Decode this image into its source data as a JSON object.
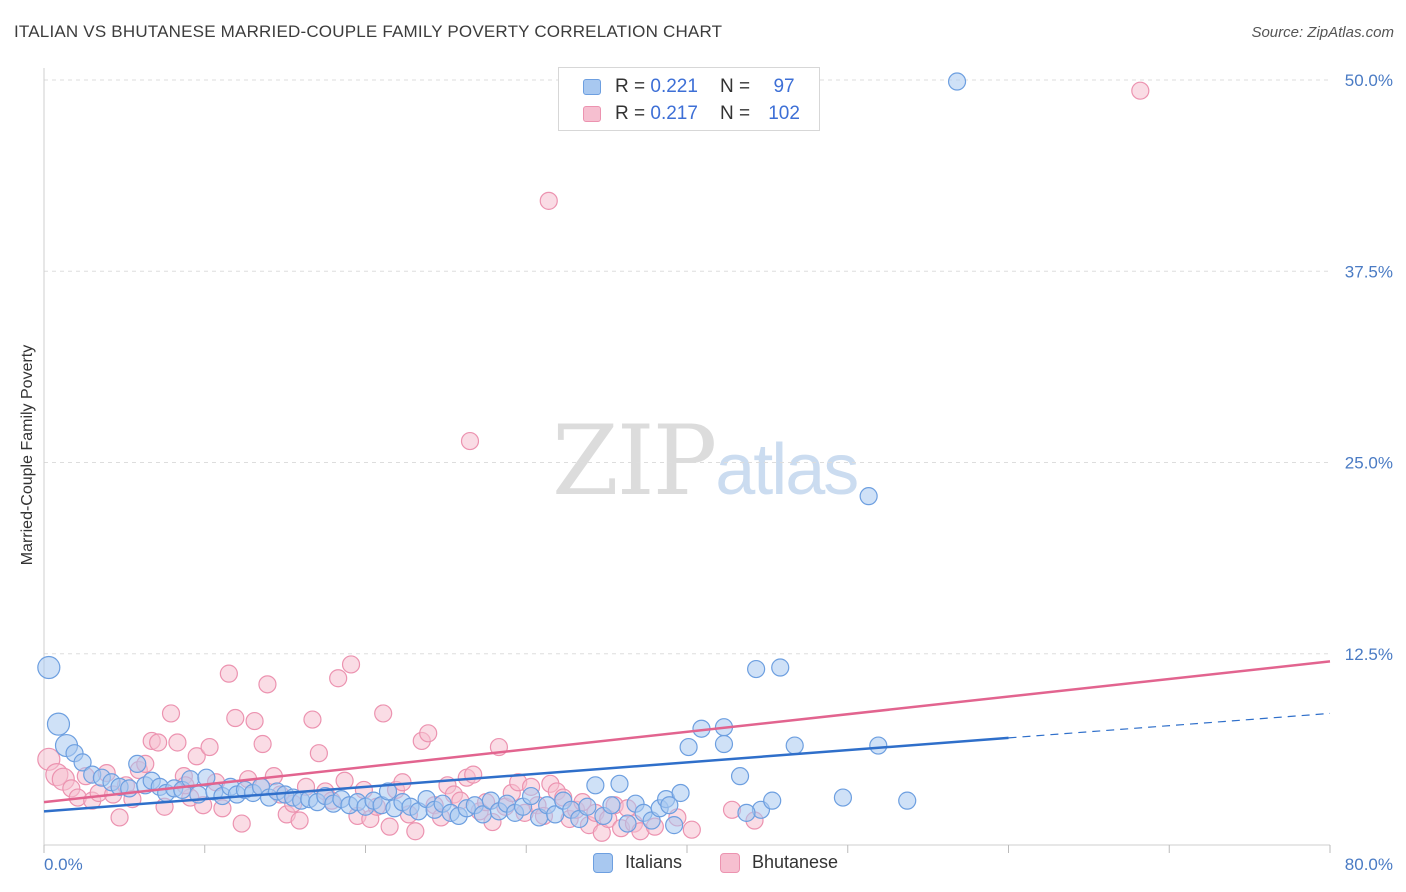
{
  "header": {
    "title": "ITALIAN VS BHUTANESE MARRIED-COUPLE FAMILY POVERTY CORRELATION CHART",
    "source": "Source: ZipAtlas.com"
  },
  "watermark": {
    "zip": "ZIP",
    "atlas": "atlas"
  },
  "legend_top": {
    "rows": [
      {
        "r_label": "R =",
        "r_value": "0.221",
        "n_label": "N =",
        "n_value": "97"
      },
      {
        "r_label": "R =",
        "r_value": "0.217",
        "n_label": "N =",
        "n_value": "102"
      }
    ]
  },
  "legend_bottom": {
    "series_a": "Italians",
    "series_b": "Bhutanese"
  },
  "colors": {
    "italians_fill": "#a8c8f0",
    "italians_stroke": "#6d9fe0",
    "italians_line": "#2f6fca",
    "bhutanese_fill": "#f6bfd0",
    "bhutanese_stroke": "#ec93b0",
    "bhutanese_line": "#e2648f",
    "tick_text": "#4a7bc4",
    "grid": "#dddddd"
  },
  "chart_data": {
    "type": "scatter",
    "title": "ITALIAN VS BHUTANESE MARRIED-COUPLE FAMILY POVERTY CORRELATION CHART",
    "xlabel": "",
    "ylabel": "Married-Couple Family Poverty",
    "xlim": [
      0,
      80
    ],
    "ylim": [
      0,
      50
    ],
    "x_tick_labels": [
      "0.0%",
      "80.0%"
    ],
    "y_ticks": [
      12.5,
      25.0,
      37.5,
      50.0
    ],
    "y_tick_labels": [
      "12.5%",
      "25.0%",
      "37.5%",
      "50.0%"
    ],
    "grid": true,
    "series": [
      {
        "name": "Italians",
        "r": 0.221,
        "n": 97,
        "trend": {
          "x0": 0,
          "y0": 2.2,
          "x1": 60,
          "y1": 7.0,
          "dashed_to_x": 80,
          "dashed_to_y": 8.6
        },
        "points": [
          [
            0.3,
            11.6
          ],
          [
            0.9,
            7.9
          ],
          [
            1.4,
            6.5
          ],
          [
            1.9,
            6.0
          ],
          [
            2.4,
            5.4
          ],
          [
            3.0,
            4.6
          ],
          [
            3.6,
            4.4
          ],
          [
            4.2,
            4.1
          ],
          [
            4.7,
            3.8
          ],
          [
            5.3,
            3.7
          ],
          [
            5.8,
            5.3
          ],
          [
            6.3,
            3.9
          ],
          [
            6.7,
            4.2
          ],
          [
            7.2,
            3.8
          ],
          [
            7.6,
            3.4
          ],
          [
            8.1,
            3.7
          ],
          [
            8.6,
            3.6
          ],
          [
            9.1,
            4.3
          ],
          [
            9.6,
            3.3
          ],
          [
            10.1,
            4.4
          ],
          [
            10.6,
            3.5
          ],
          [
            11.1,
            3.2
          ],
          [
            11.6,
            3.8
          ],
          [
            12.0,
            3.3
          ],
          [
            12.5,
            3.6
          ],
          [
            13.0,
            3.4
          ],
          [
            13.5,
            3.8
          ],
          [
            14.0,
            3.1
          ],
          [
            14.5,
            3.5
          ],
          [
            15.0,
            3.3
          ],
          [
            15.5,
            3.1
          ],
          [
            16.0,
            2.9
          ],
          [
            16.5,
            3.0
          ],
          [
            17.0,
            2.8
          ],
          [
            17.5,
            3.2
          ],
          [
            18.0,
            2.7
          ],
          [
            18.5,
            3.0
          ],
          [
            19.0,
            2.6
          ],
          [
            19.5,
            2.8
          ],
          [
            20.0,
            2.5
          ],
          [
            20.5,
            2.9
          ],
          [
            21.0,
            2.6
          ],
          [
            21.4,
            3.5
          ],
          [
            21.8,
            2.4
          ],
          [
            22.3,
            2.8
          ],
          [
            22.8,
            2.5
          ],
          [
            23.3,
            2.2
          ],
          [
            23.8,
            3.0
          ],
          [
            24.3,
            2.3
          ],
          [
            24.8,
            2.7
          ],
          [
            25.3,
            2.1
          ],
          [
            25.8,
            1.9
          ],
          [
            26.3,
            2.4
          ],
          [
            26.8,
            2.6
          ],
          [
            27.3,
            2.0
          ],
          [
            27.8,
            2.9
          ],
          [
            28.3,
            2.2
          ],
          [
            28.8,
            2.7
          ],
          [
            29.3,
            2.1
          ],
          [
            29.8,
            2.5
          ],
          [
            30.3,
            3.2
          ],
          [
            30.8,
            1.8
          ],
          [
            31.3,
            2.6
          ],
          [
            31.8,
            2.0
          ],
          [
            32.3,
            2.9
          ],
          [
            32.8,
            2.3
          ],
          [
            33.3,
            1.7
          ],
          [
            33.8,
            2.5
          ],
          [
            34.3,
            3.9
          ],
          [
            34.8,
            1.9
          ],
          [
            35.3,
            2.6
          ],
          [
            35.8,
            4.0
          ],
          [
            36.3,
            1.4
          ],
          [
            36.8,
            2.7
          ],
          [
            37.3,
            2.1
          ],
          [
            37.8,
            1.6
          ],
          [
            38.3,
            2.4
          ],
          [
            38.7,
            3.0
          ],
          [
            39.2,
            1.3
          ],
          [
            39.6,
            3.4
          ],
          [
            40.1,
            6.4
          ],
          [
            40.9,
            7.6
          ],
          [
            42.3,
            7.7
          ],
          [
            43.3,
            4.5
          ],
          [
            44.3,
            11.5
          ],
          [
            44.6,
            2.3
          ],
          [
            45.8,
            11.6
          ],
          [
            45.3,
            2.9
          ],
          [
            46.7,
            6.5
          ],
          [
            43.7,
            2.1
          ],
          [
            49.7,
            3.1
          ],
          [
            51.9,
            6.5
          ],
          [
            53.7,
            2.9
          ],
          [
            51.3,
            22.8
          ],
          [
            56.8,
            49.9
          ],
          [
            42.3,
            6.6
          ],
          [
            38.9,
            2.6
          ]
        ]
      },
      {
        "name": "Bhutanese",
        "r": 0.217,
        "n": 102,
        "trend": {
          "x0": 0,
          "y0": 2.8,
          "x1": 80,
          "y1": 12.0
        },
        "points": [
          [
            0.3,
            5.6
          ],
          [
            0.8,
            4.6
          ],
          [
            1.2,
            4.3
          ],
          [
            1.7,
            3.7
          ],
          [
            2.1,
            3.1
          ],
          [
            2.6,
            4.5
          ],
          [
            3.0,
            2.9
          ],
          [
            3.4,
            3.4
          ],
          [
            3.9,
            4.7
          ],
          [
            4.3,
            3.3
          ],
          [
            4.7,
            1.8
          ],
          [
            5.1,
            3.9
          ],
          [
            5.5,
            3.0
          ],
          [
            5.9,
            4.9
          ],
          [
            6.3,
            5.3
          ],
          [
            6.7,
            6.8
          ],
          [
            7.1,
            6.7
          ],
          [
            7.5,
            2.5
          ],
          [
            7.9,
            8.6
          ],
          [
            8.3,
            6.7
          ],
          [
            8.7,
            4.5
          ],
          [
            9.1,
            3.1
          ],
          [
            9.5,
            5.8
          ],
          [
            9.9,
            2.6
          ],
          [
            10.3,
            6.4
          ],
          [
            10.7,
            4.1
          ],
          [
            11.1,
            2.4
          ],
          [
            11.5,
            11.2
          ],
          [
            11.9,
            8.3
          ],
          [
            12.3,
            1.4
          ],
          [
            12.7,
            4.3
          ],
          [
            13.1,
            8.1
          ],
          [
            13.5,
            3.8
          ],
          [
            13.9,
            10.5
          ],
          [
            14.3,
            4.5
          ],
          [
            14.7,
            3.3
          ],
          [
            15.1,
            2.0
          ],
          [
            15.5,
            2.7
          ],
          [
            15.9,
            1.6
          ],
          [
            16.3,
            3.8
          ],
          [
            16.7,
            8.2
          ],
          [
            17.1,
            6.0
          ],
          [
            17.5,
            3.5
          ],
          [
            17.9,
            2.9
          ],
          [
            18.3,
            10.9
          ],
          [
            18.7,
            4.2
          ],
          [
            19.1,
            11.8
          ],
          [
            19.5,
            1.9
          ],
          [
            19.9,
            3.6
          ],
          [
            20.3,
            1.7
          ],
          [
            20.7,
            2.5
          ],
          [
            21.1,
            8.6
          ],
          [
            21.5,
            1.2
          ],
          [
            21.9,
            3.6
          ],
          [
            22.3,
            4.1
          ],
          [
            22.7,
            2.0
          ],
          [
            23.1,
            0.9
          ],
          [
            23.5,
            6.8
          ],
          [
            23.9,
            7.3
          ],
          [
            24.3,
            2.6
          ],
          [
            24.7,
            1.8
          ],
          [
            25.1,
            3.9
          ],
          [
            25.5,
            3.3
          ],
          [
            25.9,
            2.9
          ],
          [
            26.3,
            4.4
          ],
          [
            26.7,
            4.6
          ],
          [
            27.1,
            2.2
          ],
          [
            27.5,
            2.8
          ],
          [
            27.9,
            1.5
          ],
          [
            28.3,
            6.4
          ],
          [
            28.7,
            2.5
          ],
          [
            29.1,
            3.4
          ],
          [
            29.5,
            4.1
          ],
          [
            29.9,
            2.1
          ],
          [
            30.3,
            3.8
          ],
          [
            30.7,
            2.6
          ],
          [
            31.1,
            1.9
          ],
          [
            31.5,
            4.0
          ],
          [
            31.9,
            3.5
          ],
          [
            32.3,
            3.1
          ],
          [
            32.7,
            1.7
          ],
          [
            33.1,
            2.3
          ],
          [
            33.5,
            2.8
          ],
          [
            33.9,
            1.3
          ],
          [
            34.3,
            2.1
          ],
          [
            34.7,
            0.8
          ],
          [
            35.1,
            1.7
          ],
          [
            35.5,
            2.6
          ],
          [
            35.9,
            1.1
          ],
          [
            36.3,
            2.4
          ],
          [
            36.7,
            1.4
          ],
          [
            37.1,
            0.9
          ],
          [
            38.0,
            1.2
          ],
          [
            39.4,
            1.8
          ],
          [
            40.3,
            1.0
          ],
          [
            42.8,
            2.3
          ],
          [
            44.2,
            1.6
          ],
          [
            26.5,
            26.4
          ],
          [
            31.4,
            42.1
          ],
          [
            68.2,
            49.3
          ],
          [
            13.6,
            6.6
          ],
          [
            8.8,
            3.9
          ]
        ]
      }
    ]
  }
}
